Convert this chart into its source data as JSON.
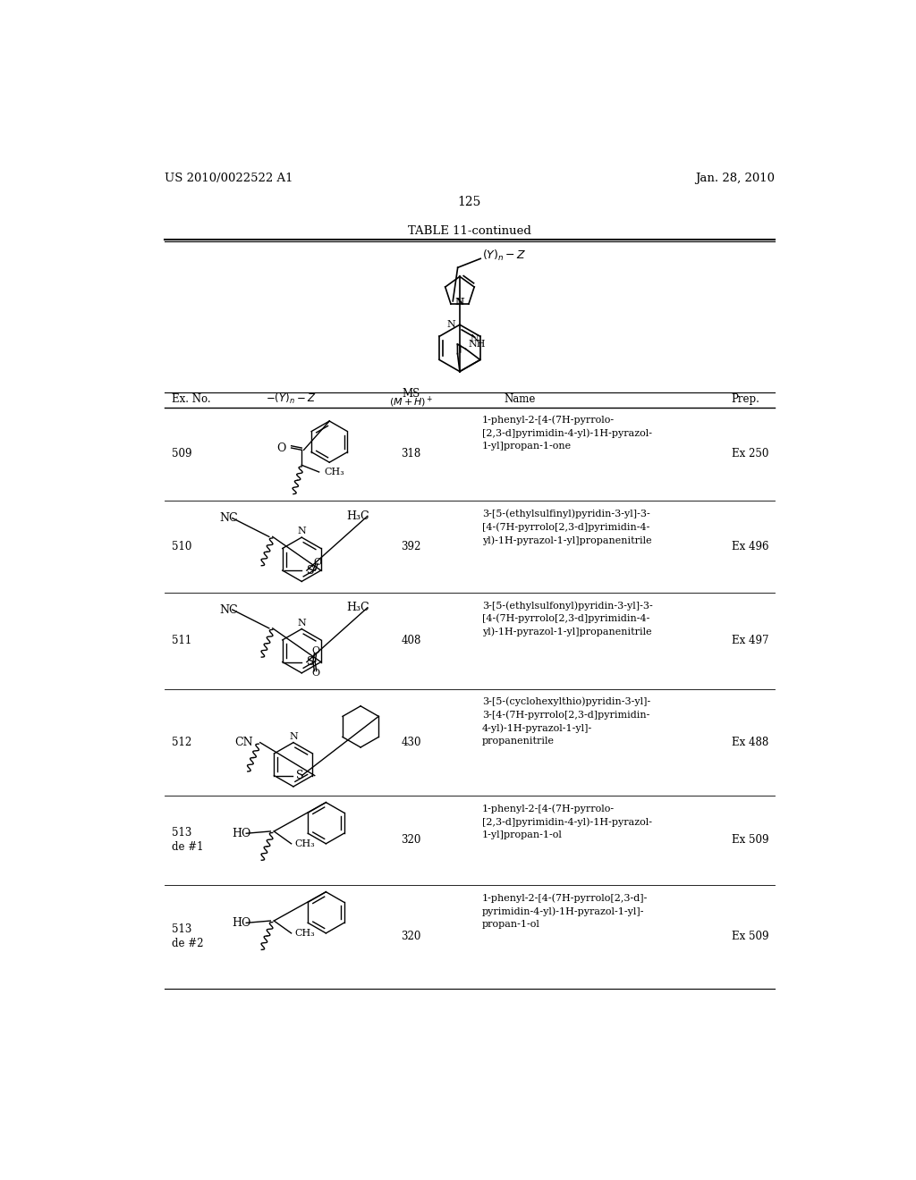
{
  "bg_color": "#ffffff",
  "header_left": "US 2010/0022522 A1",
  "header_right": "Jan. 28, 2010",
  "page_number": "125",
  "table_title": "TABLE 11-continued",
  "rows": [
    {
      "ex_no": "509",
      "ms": "318",
      "name": "1-phenyl-2-[4-(7H-pyrrolo-\n[2,3-d]pyrimidin-4-yl)-1H-pyrazol-\n1-yl]propan-1-one",
      "prep": "Ex 250"
    },
    {
      "ex_no": "510",
      "ms": "392",
      "name": "3-[5-(ethylsulfinyl)pyridin-3-yl]-3-\n[4-(7H-pyrrolo[2,3-d]pyrimidin-4-\nyl)-1H-pyrazol-1-yl]propanenitrile",
      "prep": "Ex 496"
    },
    {
      "ex_no": "511",
      "ms": "408",
      "name": "3-[5-(ethylsulfonyl)pyridin-3-yl]-3-\n[4-(7H-pyrrolo[2,3-d]pyrimidin-4-\nyl)-1H-pyrazol-1-yl]propanenitrile",
      "prep": "Ex 497"
    },
    {
      "ex_no": "512",
      "ms": "430",
      "name": "3-[5-(cyclohexylthio)pyridin-3-yl]-\n3-[4-(7H-pyrrolo[2,3-d]pyrimidin-\n4-yl)-1H-pyrazol-1-yl]-\npropanenitrile",
      "prep": "Ex 488"
    },
    {
      "ex_no": "513\nde #1",
      "ms": "320",
      "name": "1-phenyl-2-[4-(7H-pyrrolo-\n[2,3-d]pyrimidin-4-yl)-1H-pyrazol-\n1-yl]propan-1-ol",
      "prep": "Ex 509"
    },
    {
      "ex_no": "513\nde #2",
      "ms": "320",
      "name": "1-phenyl-2-[4-(7H-pyrrolo[2,3-d]-\npyrimidin-4-yl)-1H-pyrazol-1-yl]-\npropan-1-ol",
      "prep": "Ex 509"
    }
  ]
}
